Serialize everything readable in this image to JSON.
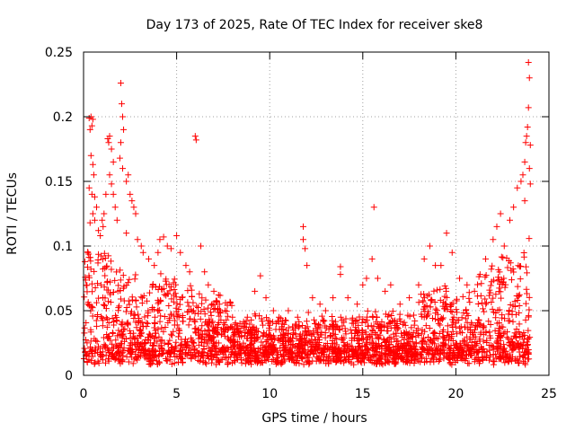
{
  "chart_data": {
    "type": "scatter",
    "title": "Day 173 of 2025, Rate Of TEC Index for receiver ske8",
    "xlabel": "GPS time / hours",
    "ylabel": "ROTI / TECUs",
    "xlim": [
      0,
      25
    ],
    "ylim": [
      0,
      0.25
    ],
    "xticks": [
      0,
      5,
      10,
      15,
      20,
      25
    ],
    "xtick_labels": [
      "0",
      "5",
      "10",
      "15",
      "20",
      "25"
    ],
    "yticks": [
      0,
      0.05,
      0.1,
      0.15,
      0.2,
      0.25
    ],
    "ytick_labels": [
      "0",
      "0.05",
      "0.1",
      "0.15",
      "0.2",
      "0.25"
    ],
    "grid": true,
    "marker": "+",
    "color": "#ff0000",
    "series": [
      {
        "name": "ROTI",
        "points": [
          [
            0.3,
            0.199
          ],
          [
            0.35,
            0.19
          ],
          [
            0.4,
            0.2
          ],
          [
            0.45,
            0.193
          ],
          [
            0.5,
            0.198
          ],
          [
            0.4,
            0.17
          ],
          [
            0.5,
            0.163
          ],
          [
            0.55,
            0.155
          ],
          [
            0.3,
            0.145
          ],
          [
            0.45,
            0.14
          ],
          [
            0.6,
            0.138
          ],
          [
            0.7,
            0.13
          ],
          [
            0.5,
            0.125
          ],
          [
            0.6,
            0.12
          ],
          [
            0.35,
            0.118
          ],
          [
            0.8,
            0.112
          ],
          [
            0.9,
            0.108
          ],
          [
            1.0,
            0.12
          ],
          [
            1.05,
            0.115
          ],
          [
            1.1,
            0.125
          ],
          [
            1.2,
            0.14
          ],
          [
            1.3,
            0.183
          ],
          [
            1.35,
            0.18
          ],
          [
            1.4,
            0.185
          ],
          [
            1.5,
            0.175
          ],
          [
            1.6,
            0.165
          ],
          [
            1.4,
            0.155
          ],
          [
            1.5,
            0.148
          ],
          [
            1.6,
            0.14
          ],
          [
            1.7,
            0.13
          ],
          [
            1.8,
            0.12
          ],
          [
            2.0,
            0.226
          ],
          [
            2.05,
            0.21
          ],
          [
            2.1,
            0.2
          ],
          [
            2.15,
            0.19
          ],
          [
            2.0,
            0.18
          ],
          [
            1.95,
            0.168
          ],
          [
            2.1,
            0.16
          ],
          [
            2.3,
            0.15
          ],
          [
            2.4,
            0.155
          ],
          [
            2.5,
            0.14
          ],
          [
            2.6,
            0.135
          ],
          [
            2.7,
            0.13
          ],
          [
            2.8,
            0.125
          ],
          [
            2.3,
            0.11
          ],
          [
            2.9,
            0.105
          ],
          [
            3.1,
            0.1
          ],
          [
            3.2,
            0.095
          ],
          [
            3.5,
            0.09
          ],
          [
            3.8,
            0.085
          ],
          [
            4.0,
            0.095
          ],
          [
            4.1,
            0.105
          ],
          [
            4.3,
            0.107
          ],
          [
            4.5,
            0.1
          ],
          [
            4.7,
            0.098
          ],
          [
            5.0,
            0.108
          ],
          [
            5.2,
            0.095
          ],
          [
            5.5,
            0.085
          ],
          [
            5.7,
            0.08
          ],
          [
            6.0,
            0.185
          ],
          [
            6.05,
            0.182
          ],
          [
            6.3,
            0.1
          ],
          [
            6.5,
            0.08
          ],
          [
            6.7,
            0.07
          ],
          [
            7.0,
            0.065
          ],
          [
            7.3,
            0.055
          ],
          [
            7.6,
            0.05
          ],
          [
            8.0,
            0.045
          ],
          [
            8.4,
            0.04
          ],
          [
            8.8,
            0.045
          ],
          [
            9.2,
            0.065
          ],
          [
            9.5,
            0.077
          ],
          [
            9.8,
            0.06
          ],
          [
            10.2,
            0.05
          ],
          [
            10.5,
            0.045
          ],
          [
            11.0,
            0.05
          ],
          [
            11.5,
            0.045
          ],
          [
            11.8,
            0.115
          ],
          [
            11.8,
            0.105
          ],
          [
            11.9,
            0.098
          ],
          [
            12.0,
            0.085
          ],
          [
            12.3,
            0.06
          ],
          [
            12.7,
            0.055
          ],
          [
            13.0,
            0.05
          ],
          [
            13.4,
            0.06
          ],
          [
            13.8,
            0.084
          ],
          [
            13.8,
            0.078
          ],
          [
            14.2,
            0.06
          ],
          [
            14.7,
            0.055
          ],
          [
            15.0,
            0.07
          ],
          [
            15.2,
            0.075
          ],
          [
            15.6,
            0.13
          ],
          [
            15.5,
            0.09
          ],
          [
            15.8,
            0.075
          ],
          [
            16.2,
            0.065
          ],
          [
            16.5,
            0.07
          ],
          [
            17.0,
            0.055
          ],
          [
            17.5,
            0.06
          ],
          [
            18.0,
            0.07
          ],
          [
            18.3,
            0.09
          ],
          [
            18.6,
            0.1
          ],
          [
            18.9,
            0.085
          ],
          [
            19.2,
            0.085
          ],
          [
            19.5,
            0.11
          ],
          [
            19.8,
            0.095
          ],
          [
            20.2,
            0.075
          ],
          [
            20.6,
            0.07
          ],
          [
            21.0,
            0.065
          ],
          [
            21.3,
            0.078
          ],
          [
            21.6,
            0.09
          ],
          [
            22.0,
            0.105
          ],
          [
            22.2,
            0.115
          ],
          [
            22.4,
            0.125
          ],
          [
            22.6,
            0.1
          ],
          [
            22.9,
            0.12
          ],
          [
            23.1,
            0.13
          ],
          [
            23.3,
            0.145
          ],
          [
            23.5,
            0.15
          ],
          [
            23.6,
            0.155
          ],
          [
            23.7,
            0.165
          ],
          [
            23.8,
            0.185
          ],
          [
            23.85,
            0.192
          ],
          [
            23.9,
            0.207
          ],
          [
            23.95,
            0.23
          ],
          [
            23.9,
            0.242
          ],
          [
            23.75,
            0.18
          ],
          [
            24.0,
            0.178
          ],
          [
            23.95,
            0.16
          ],
          [
            24.0,
            0.148
          ],
          [
            23.7,
            0.135
          ]
        ]
      }
    ]
  }
}
